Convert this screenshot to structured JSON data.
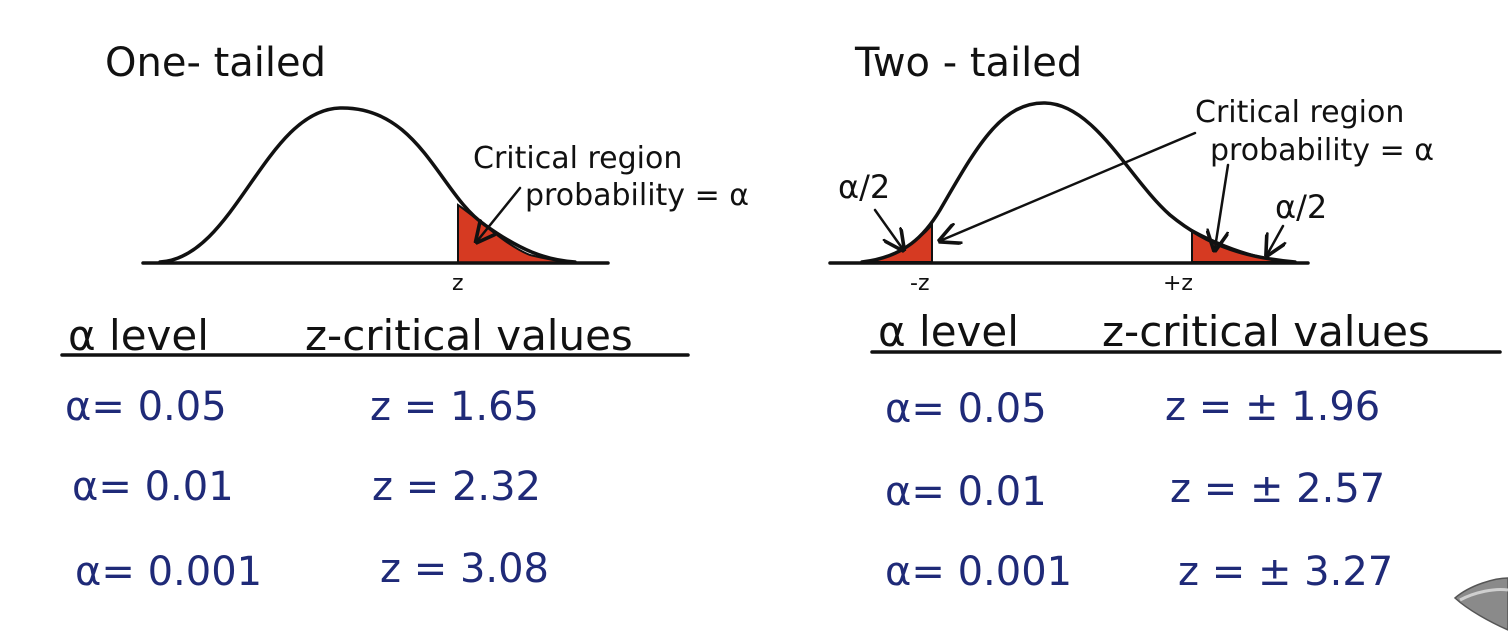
{
  "colors": {
    "region": "#d63a22",
    "ink": "#111111",
    "value_ink": "#1f2a78"
  },
  "one_tailed": {
    "title": "One- tailed",
    "annotation_line1": "Critical region",
    "annotation_line2": "probability = α",
    "axis_label": "z",
    "header_alpha": "α level",
    "header_z": "z-critical values",
    "rows": [
      {
        "alpha": "α= 0.05",
        "z": "z = 1.65"
      },
      {
        "alpha": "α= 0.01",
        "z": "z = 2.32"
      },
      {
        "alpha": "α= 0.001",
        "z": "z = 3.08"
      }
    ]
  },
  "two_tailed": {
    "title": "Two - tailed",
    "annotation_line1": "Critical region",
    "annotation_line2": "probability = α",
    "left_tail_label": "α/2",
    "right_tail_label": "α/2",
    "axis_left_label": "-z",
    "axis_right_label": "+z",
    "header_alpha": "α level",
    "header_z": "z-critical values",
    "rows": [
      {
        "alpha": "α= 0.05",
        "z": "z = ± 1.96"
      },
      {
        "alpha": "α= 0.01",
        "z": "z = ± 2.57"
      },
      {
        "alpha": "α= 0.001",
        "z": "z = ± 3.27"
      }
    ]
  }
}
